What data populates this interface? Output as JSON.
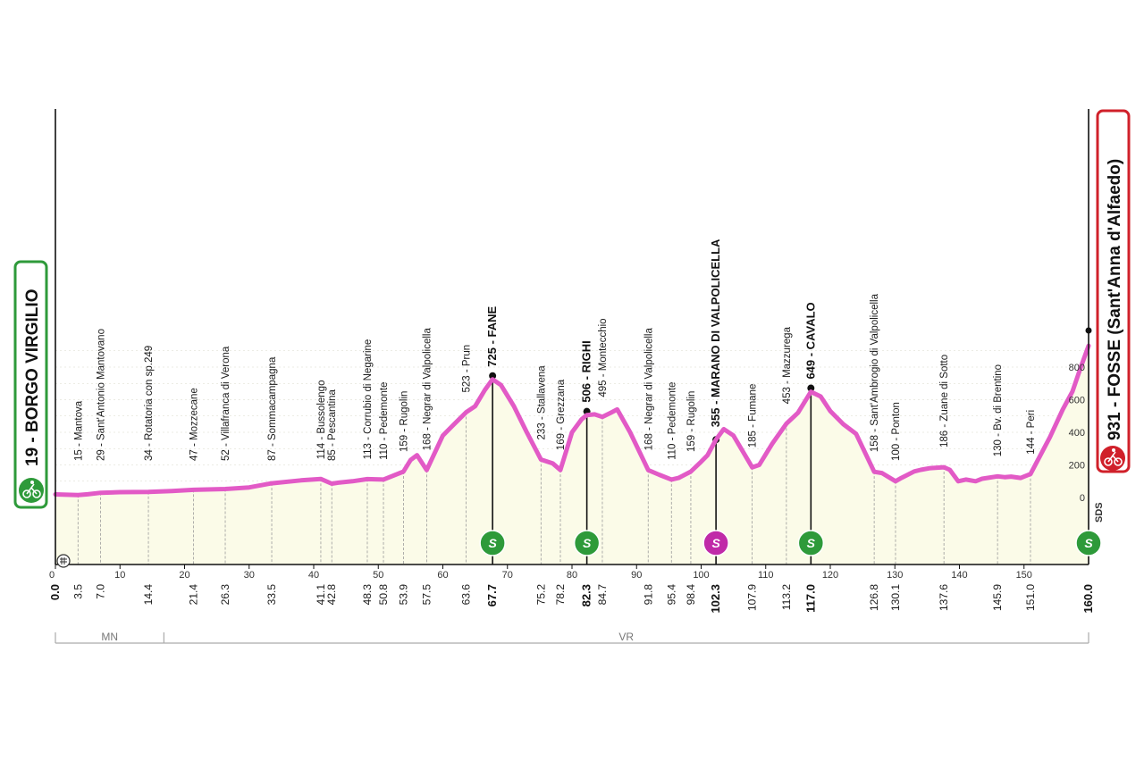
{
  "colors": {
    "profile_line": "#e25ac6",
    "fill": "#fbfbe8",
    "start_box": "#2e9a3a",
    "finish_box": "#d0202a",
    "sprint_green": "#2e9a3a",
    "sprint_magenta": "#c02aa8"
  },
  "start": {
    "label": "19 - BORGO VIRGILIO",
    "icon": "cyclist-icon"
  },
  "finish": {
    "label": "931 - FOSSE (Sant'Anna d'Alfaedo)",
    "icon": "cyclist-icon"
  },
  "vertical_label": "SDS",
  "chart_data": {
    "type": "area",
    "xlim": [
      0,
      160
    ],
    "ylim": [
      0,
      931
    ],
    "x_ticks": [
      0,
      10,
      20,
      30,
      40,
      50,
      60,
      70,
      80,
      90,
      100,
      110,
      120,
      130,
      140,
      150
    ],
    "y_ticks": [
      0,
      200,
      400,
      600,
      800
    ],
    "profile": [
      [
        0,
        19
      ],
      [
        3.5,
        15
      ],
      [
        5,
        20
      ],
      [
        7,
        29
      ],
      [
        10,
        33
      ],
      [
        14.4,
        34
      ],
      [
        18,
        40
      ],
      [
        21.4,
        47
      ],
      [
        26.3,
        52
      ],
      [
        30,
        62
      ],
      [
        33.5,
        87
      ],
      [
        38,
        105
      ],
      [
        41.1,
        114
      ],
      [
        42.8,
        85
      ],
      [
        44,
        92
      ],
      [
        46,
        100
      ],
      [
        48.3,
        113
      ],
      [
        50.8,
        110
      ],
      [
        53.9,
        159
      ],
      [
        55,
        230
      ],
      [
        56,
        260
      ],
      [
        57.5,
        168
      ],
      [
        60,
        380
      ],
      [
        62,
        460
      ],
      [
        63.6,
        523
      ],
      [
        65,
        560
      ],
      [
        66.5,
        660
      ],
      [
        67.7,
        725
      ],
      [
        69,
        690
      ],
      [
        71,
        560
      ],
      [
        73,
        400
      ],
      [
        75.2,
        233
      ],
      [
        77,
        210
      ],
      [
        78.2,
        169
      ],
      [
        80,
        400
      ],
      [
        81.5,
        480
      ],
      [
        82.3,
        506
      ],
      [
        83.5,
        510
      ],
      [
        84.7,
        495
      ],
      [
        86,
        520
      ],
      [
        87,
        540
      ],
      [
        89,
        400
      ],
      [
        91.8,
        168
      ],
      [
        93.5,
        140
      ],
      [
        95.4,
        110
      ],
      [
        96.5,
        120
      ],
      [
        98.4,
        159
      ],
      [
        100,
        220
      ],
      [
        101,
        260
      ],
      [
        102.3,
        355
      ],
      [
        103.5,
        420
      ],
      [
        105,
        380
      ],
      [
        107.9,
        185
      ],
      [
        109,
        200
      ],
      [
        111,
        330
      ],
      [
        113.2,
        453
      ],
      [
        115,
        520
      ],
      [
        117,
        649
      ],
      [
        118.5,
        620
      ],
      [
        120,
        530
      ],
      [
        122,
        450
      ],
      [
        124,
        390
      ],
      [
        126.8,
        158
      ],
      [
        128,
        150
      ],
      [
        130.1,
        100
      ],
      [
        131,
        120
      ],
      [
        133,
        160
      ],
      [
        134,
        170
      ],
      [
        135.5,
        180
      ],
      [
        137.6,
        186
      ],
      [
        138.5,
        170
      ],
      [
        139.8,
        100
      ],
      [
        141,
        110
      ],
      [
        142.5,
        100
      ],
      [
        143.5,
        115
      ],
      [
        145.9,
        130
      ],
      [
        147,
        125
      ],
      [
        148,
        128
      ],
      [
        149.5,
        120
      ],
      [
        151,
        144
      ],
      [
        154,
        370
      ],
      [
        156,
        540
      ],
      [
        157.5,
        650
      ],
      [
        158.8,
        800
      ],
      [
        160,
        931
      ]
    ],
    "waypoints": [
      {
        "km": "0.0",
        "label": "",
        "bold": true
      },
      {
        "km": "3.5",
        "label": "15 - Mantova",
        "bold": false
      },
      {
        "km": "7.0",
        "label": "29 - Sant'Antonio Mantovano",
        "bold": false
      },
      {
        "km": "14.4",
        "label": "34 - Rotatoria con sp.249",
        "bold": false
      },
      {
        "km": "21.4",
        "label": "47 - Mozzecane",
        "bold": false
      },
      {
        "km": "26.3",
        "label": "52 - Villafranca di Verona",
        "bold": false
      },
      {
        "km": "33.5",
        "label": "87 - Sommacampagna",
        "bold": false
      },
      {
        "km": "41.1",
        "label": "114 - Bussolengo",
        "bold": false
      },
      {
        "km": "42.8",
        "label": "85 - Pescantina",
        "bold": false
      },
      {
        "km": "48.3",
        "label": "113 - Corrubio di Negarine",
        "bold": false
      },
      {
        "km": "50.8",
        "label": "110 - Pedemonte",
        "bold": false
      },
      {
        "km": "53.9",
        "label": "159 - Rugolin",
        "bold": false
      },
      {
        "km": "57.5",
        "label": "168 - Negrar di Valpolicella",
        "bold": false
      },
      {
        "km": "63.6",
        "label": "523 - Prun",
        "bold": false
      },
      {
        "km": "67.7",
        "label": "725 - FANE",
        "bold": true
      },
      {
        "km": "75.2",
        "label": "233 - Stallavena",
        "bold": false
      },
      {
        "km": "78.2",
        "label": "169 - Grezzana",
        "bold": false
      },
      {
        "km": "82.3",
        "label": "506 - RIGHI",
        "bold": true
      },
      {
        "km": "84.7",
        "label": "495 - Montecchio",
        "bold": false
      },
      {
        "km": "91.8",
        "label": "168 - Negrar di Valpolicella",
        "bold": false
      },
      {
        "km": "95.4",
        "label": "110 - Pedemonte",
        "bold": false
      },
      {
        "km": "98.4",
        "label": "159 - Rugolin",
        "bold": false
      },
      {
        "km": "102.3",
        "label": "355 - MARANO DI VALPOLICELLA",
        "bold": true
      },
      {
        "km": "107.9",
        "label": "185 - Fumane",
        "bold": false
      },
      {
        "km": "113.2",
        "label": "453 - Mazzurega",
        "bold": false
      },
      {
        "km": "117.0",
        "label": "649 - CAVALO",
        "bold": true
      },
      {
        "km": "126.8",
        "label": "158 - Sant'Ambrogio di Valpolicella",
        "bold": false
      },
      {
        "km": "130.1",
        "label": "100 - Ponton",
        "bold": false
      },
      {
        "km": "137.6",
        "label": "186 - Zuane di Sotto",
        "bold": false
      },
      {
        "km": "145.9",
        "label": "130 - Bv. di Brentino",
        "bold": false
      },
      {
        "km": "151.0",
        "label": "144 - Peri",
        "bold": false
      },
      {
        "km": "160.0",
        "label": "",
        "bold": true
      }
    ],
    "sprints": [
      {
        "km": 67.7,
        "label": "S",
        "type": "green"
      },
      {
        "km": 82.3,
        "label": "S",
        "type": "green"
      },
      {
        "km": 102.3,
        "label": "S",
        "type": "magenta"
      },
      {
        "km": 117.0,
        "label": "S",
        "type": "green"
      },
      {
        "km": 160.0,
        "label": "S",
        "type": "green"
      }
    ],
    "regions": [
      {
        "label": "MN",
        "from": 0,
        "to": 16.8
      },
      {
        "label": "VR",
        "from": 16.8,
        "to": 160
      }
    ]
  }
}
